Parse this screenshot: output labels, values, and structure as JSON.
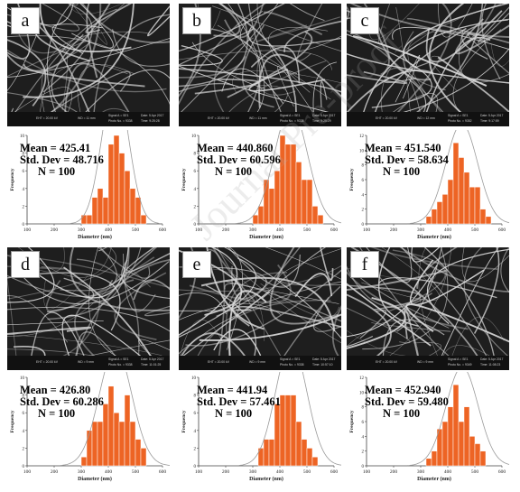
{
  "panels": [
    {
      "label": "a",
      "sem": {
        "eht": "EHT = 20.00 kV",
        "wd": "WD = 11 mm",
        "signal": "Signal A = SE1",
        "photo": "Photo No. = 9338",
        "date": "Date: 5 Apr 2017",
        "time": "Time: 9:25:28"
      },
      "stats": {
        "mean": "Mean = 425.41",
        "sd": "Std. Dev = 48.716",
        "n": "N = 100"
      }
    },
    {
      "label": "b",
      "sem": {
        "eht": "EHT = 20.00 kV",
        "wd": "WD = 11 mm",
        "signal": "Signal A = SE1",
        "photo": "Photo No. = 9338",
        "date": "Date: 5 Apr 2017",
        "time": "Time: 9:25:29"
      },
      "stats": {
        "mean": "Mean = 440.860",
        "sd": "Std. Dev = 60.596",
        "n": "N = 100"
      }
    },
    {
      "label": "c",
      "sem": {
        "eht": "EHT = 20.00 kV",
        "wd": "WD = 12 mm",
        "signal": "Signal A = SE1",
        "photo": "Photo No. = 9352",
        "date": "Date: 5 Apr 2017",
        "time": "Time: 9:17:59"
      },
      "stats": {
        "mean": "Mean = 451.540",
        "sd": "Std. Dev = 58.634",
        "n": "N = 100"
      }
    },
    {
      "label": "d",
      "sem": {
        "eht": "EHT = 20.00 kV",
        "wd": "WD = 9 mm",
        "signal": "Signal A = SE1",
        "photo": "Photo No. = 9338",
        "date": "Date: 5 Apr 2017",
        "time": "Time: 11:01:25"
      },
      "stats": {
        "mean": "Mean = 426.80",
        "sd": "Std. Dev = 60.286",
        "n": "N = 100"
      }
    },
    {
      "label": "e",
      "sem": {
        "eht": "EHT = 20.00 kV",
        "wd": "WD = 9 mm",
        "signal": "Signal A = SE1",
        "photo": "Photo No. = 9338",
        "date": "Date: 5 Apr 2017",
        "time": "Time: 10:57:10"
      },
      "stats": {
        "mean": "Mean = 441.94",
        "sd": "Std. Dev = 57.461",
        "n": "N = 100"
      }
    },
    {
      "label": "f",
      "sem": {
        "eht": "EHT = 20.00 kV",
        "wd": "WD = 9 mm",
        "signal": "Signal A = SE1",
        "photo": "Photo No. = 9349",
        "date": "Date: 5 Apr 2017",
        "time": "Time: 11:08:23"
      },
      "stats": {
        "mean": "Mean = 452.940",
        "sd": "Std. Dev = 59.480",
        "n": "N = 100"
      }
    }
  ],
  "watermark": "Journal Pre-proof",
  "colors": {
    "bar": "#ed6424",
    "bar_edge": "#ffffff",
    "curve": "#9a9a9a",
    "sem_bg": "#1e1e1e",
    "fiber": "#d9d9d9"
  },
  "chart_data": [
    {
      "type": "bar",
      "panel": "a",
      "xlabel": "Diameter (nm)",
      "ylabel": "Frequency",
      "xlim": [
        100,
        600
      ],
      "xticks": [
        100,
        200,
        300,
        400,
        500,
        600
      ],
      "ylim": [
        0,
        10
      ],
      "yticks": [
        0,
        2,
        4,
        6,
        8,
        10
      ],
      "bin_width": 20,
      "bins": [
        310,
        330,
        350,
        370,
        390,
        410,
        430,
        450,
        470,
        490,
        510,
        530
      ],
      "values": [
        1,
        1,
        3,
        4,
        3,
        9,
        10,
        8,
        6,
        4,
        3,
        1
      ],
      "fit": {
        "mean": 425.41,
        "sd": 48.716
      }
    },
    {
      "type": "bar",
      "panel": "b",
      "xlabel": "Diameter (nm)",
      "ylabel": "Frequency",
      "xlim": [
        100,
        600
      ],
      "xticks": [
        100,
        200,
        300,
        400,
        500,
        600
      ],
      "ylim": [
        0,
        10
      ],
      "yticks": [
        0,
        2,
        4,
        6,
        8,
        10
      ],
      "bin_width": 20,
      "bins": [
        310,
        330,
        350,
        370,
        390,
        410,
        430,
        450,
        470,
        490,
        510,
        530,
        550
      ],
      "values": [
        1,
        2,
        5,
        4,
        6,
        10,
        9,
        9,
        7,
        5,
        5,
        2,
        1
      ],
      "fit": {
        "mean": 440.86,
        "sd": 60.596
      }
    },
    {
      "type": "bar",
      "panel": "c",
      "xlabel": "Diameter (nm)",
      "ylabel": "Frequency",
      "xlim": [
        100,
        600
      ],
      "xticks": [
        100,
        200,
        300,
        400,
        500,
        600
      ],
      "ylim": [
        0,
        12
      ],
      "yticks": [
        0,
        2,
        4,
        6,
        8,
        10,
        12
      ],
      "bin_width": 20,
      "bins": [
        330,
        350,
        370,
        390,
        410,
        430,
        450,
        470,
        490,
        510,
        530,
        550
      ],
      "values": [
        1,
        2,
        3,
        4,
        6,
        11,
        9,
        7,
        5,
        5,
        2,
        1
      ],
      "fit": {
        "mean": 451.54,
        "sd": 58.634
      }
    },
    {
      "type": "bar",
      "panel": "d",
      "xlabel": "Diameter (nm)",
      "ylabel": "Frequency",
      "xlim": [
        100,
        600
      ],
      "xticks": [
        100,
        200,
        300,
        400,
        500,
        600
      ],
      "ylim": [
        0,
        10
      ],
      "yticks": [
        0,
        2,
        4,
        6,
        8,
        10
      ],
      "bin_width": 20,
      "bins": [
        310,
        330,
        350,
        370,
        390,
        410,
        430,
        450,
        470,
        490,
        510,
        530
      ],
      "values": [
        1,
        4,
        5,
        5,
        7,
        9,
        6,
        5,
        8,
        5,
        3,
        2
      ],
      "fit": {
        "mean": 426.8,
        "sd": 60.286
      }
    },
    {
      "type": "bar",
      "panel": "e",
      "xlabel": "Diameter (nm)",
      "ylabel": "Frequency",
      "xlim": [
        100,
        600
      ],
      "xticks": [
        100,
        200,
        300,
        400,
        500,
        600
      ],
      "ylim": [
        0,
        10
      ],
      "yticks": [
        0,
        2,
        4,
        6,
        8,
        10
      ],
      "bin_width": 20,
      "bins": [
        330,
        350,
        370,
        390,
        410,
        430,
        450,
        470,
        490,
        510,
        530
      ],
      "values": [
        2,
        3,
        3,
        7,
        8,
        8,
        8,
        5,
        3,
        2,
        1
      ],
      "fit": {
        "mean": 441.94,
        "sd": 57.461
      }
    },
    {
      "type": "bar",
      "panel": "f",
      "xlabel": "Diameter (nm)",
      "ylabel": "Frequency",
      "xlim": [
        100,
        600
      ],
      "xticks": [
        100,
        200,
        300,
        400,
        500,
        600
      ],
      "ylim": [
        0,
        12
      ],
      "yticks": [
        0,
        2,
        4,
        6,
        8,
        10,
        12
      ],
      "bin_width": 20,
      "bins": [
        330,
        350,
        370,
        390,
        410,
        430,
        450,
        470,
        490,
        510,
        530
      ],
      "values": [
        1,
        2,
        5,
        6,
        8,
        11,
        6,
        8,
        4,
        3,
        2
      ],
      "fit": {
        "mean": 452.94,
        "sd": 59.48
      }
    }
  ]
}
